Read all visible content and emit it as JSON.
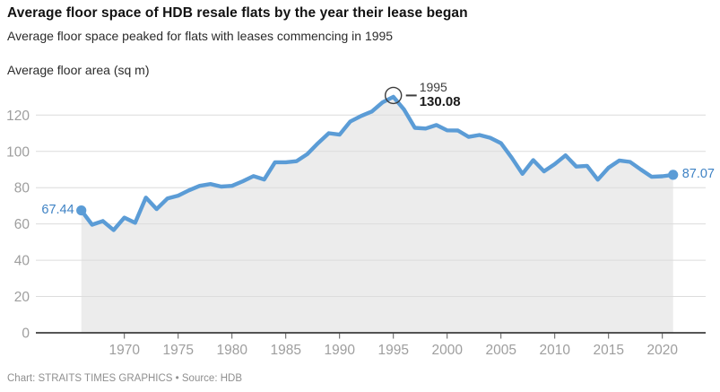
{
  "header": {
    "title": "Average floor space of HDB resale flats by the year their lease began",
    "subtitle": "Average floor space peaked for flats with leases commencing in 1995"
  },
  "footer": {
    "credit": "Chart: STRAITS TIMES GRAPHICS • Source: HDB"
  },
  "chart_data": {
    "type": "line",
    "title": "Average floor space of HDB resale flats by the year their lease began",
    "ylabel": "Average floor area (sq m)",
    "xlabel": "",
    "grid": true,
    "legend_position": "none",
    "xlim": [
      1966,
      2021
    ],
    "ylim": [
      0,
      135
    ],
    "x_ticks": [
      1970,
      1975,
      1980,
      1985,
      1990,
      1995,
      2000,
      2005,
      2010,
      2015,
      2020
    ],
    "y_ticks": [
      0,
      20,
      40,
      60,
      80,
      100,
      120
    ],
    "x": [
      1966,
      1967,
      1968,
      1969,
      1970,
      1971,
      1972,
      1973,
      1974,
      1975,
      1976,
      1977,
      1978,
      1979,
      1980,
      1981,
      1982,
      1983,
      1984,
      1985,
      1986,
      1987,
      1988,
      1989,
      1990,
      1991,
      1992,
      1993,
      1994,
      1995,
      1996,
      1997,
      1998,
      1999,
      2000,
      2001,
      2002,
      2003,
      2004,
      2005,
      2006,
      2007,
      2008,
      2009,
      2010,
      2011,
      2012,
      2013,
      2014,
      2015,
      2016,
      2017,
      2018,
      2019,
      2020,
      2021
    ],
    "series": [
      {
        "name": "Average floor area (sq m)",
        "values": [
          67.44,
          59.6,
          61.6,
          56.6,
          63.5,
          60.6,
          74.5,
          68.2,
          74.0,
          75.6,
          78.5,
          81.0,
          82.0,
          80.6,
          81.0,
          83.5,
          86.4,
          84.5,
          94.0,
          94.0,
          94.6,
          98.5,
          104.5,
          110.0,
          109.2,
          116.5,
          119.5,
          122.0,
          127.0,
          130.08,
          123.0,
          113.0,
          112.6,
          114.5,
          111.6,
          111.5,
          108.0,
          109.0,
          107.5,
          104.5,
          96.5,
          87.6,
          95.2,
          89.0,
          93.0,
          97.8,
          91.6,
          92.0,
          84.4,
          91.0,
          95.0,
          94.2,
          90.0,
          86.0,
          86.3,
          87.07
        ]
      }
    ],
    "annotations": {
      "first_point": {
        "x": 1966,
        "value": 67.44,
        "label": "67.44"
      },
      "peak": {
        "x": 1995,
        "value": 130.08,
        "year_label": "1995",
        "value_label": "130.08"
      },
      "last_point": {
        "x": 2021,
        "value": 87.07,
        "label": "87.07"
      }
    },
    "colors": {
      "line": "#5b9cd6",
      "area": "#ececec",
      "value_label": "#3e82c4",
      "gridline": "#dcdcdc",
      "axis_label": "#9e9e9e",
      "baseline": "#1f1f1f",
      "tick": "#5a5a5a",
      "annotation": "#3d3d3d"
    }
  }
}
